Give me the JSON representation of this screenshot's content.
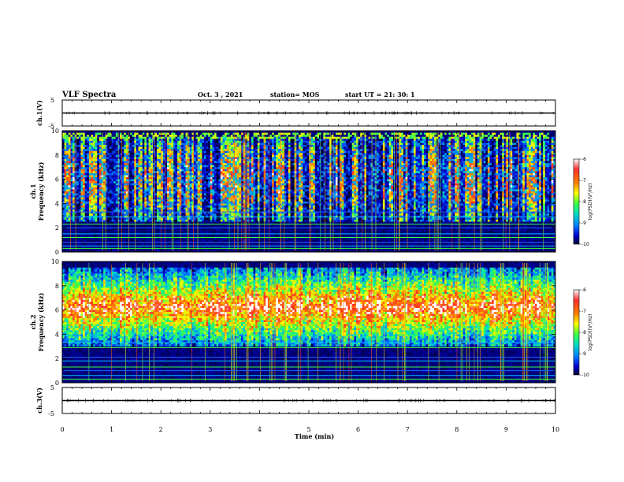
{
  "header": {
    "title": "VLF Spectra",
    "date": "Oct. 3  , 2021",
    "station": "station= MOS",
    "start_ut": "start  UT =  21: 30: 1"
  },
  "chart_data": [
    {
      "type": "line",
      "panel": "ch1-waveform",
      "ylabel": "ch.1(V)",
      "ylim": [
        -5,
        5
      ],
      "yticks": [
        "5",
        "-5"
      ],
      "x": [
        0,
        10
      ],
      "y": [
        0,
        0
      ],
      "xlim": [
        0,
        10
      ]
    },
    {
      "type": "heatmap",
      "panel": "ch1-spectrogram",
      "ylabel": "ch.1\nFrequency (kHz)",
      "ylabel_line1": "ch.1",
      "ylabel_line2": "Frequency (kHz)",
      "xlim": [
        0,
        10
      ],
      "ylim": [
        0,
        10
      ],
      "yticks": [
        "0",
        "2",
        "4",
        "6",
        "8",
        "10"
      ],
      "colorbar": {
        "label": "log(PSD)(V²/Hz)",
        "ticks": [
          "-6",
          "-7",
          "-8",
          "-9",
          "-10"
        ],
        "range": [
          -10,
          -6
        ],
        "colors": [
          "#ffffff",
          "#ff0000",
          "#ff8000",
          "#ffff00",
          "#80ff00",
          "#00ff80",
          "#00c0ff",
          "#0000ff",
          "#000040"
        ]
      },
      "tone_lines_khz": [
        0.3,
        0.5,
        0.8,
        1.2,
        1.5,
        2.0,
        2.3,
        2.9,
        3.3
      ],
      "emission_band_khz": [
        2.5,
        9.5
      ]
    },
    {
      "type": "heatmap",
      "panel": "ch2-spectrogram",
      "ylabel": "ch.2\nFrequency (kHz)",
      "ylabel_line1": "ch.2",
      "ylabel_line2": "Frequency (kHz)",
      "xlim": [
        0,
        10
      ],
      "ylim": [
        0,
        10
      ],
      "yticks": [
        "0",
        "2",
        "4",
        "6",
        "8",
        "10"
      ],
      "colorbar": {
        "label": "log(PSD)(V²/Hz)",
        "ticks": [
          "-6",
          "-7",
          "-8",
          "-9",
          "-10"
        ],
        "range": [
          -10,
          -6
        ],
        "colors": [
          "#ffffff",
          "#ff0000",
          "#ff8000",
          "#ffff00",
          "#80ff00",
          "#00ff80",
          "#00c0ff",
          "#0000ff",
          "#000040"
        ]
      },
      "tone_lines_khz": [
        0.3,
        0.6,
        1.0,
        1.3,
        1.8,
        2.1,
        2.9,
        3.3
      ],
      "emission_band_khz": [
        3.0,
        9.5
      ],
      "peak_band_khz": [
        5.0,
        7.5
      ]
    },
    {
      "type": "line",
      "panel": "ch3-waveform",
      "ylabel": "ch.3(V)",
      "ylim": [
        -5,
        5
      ],
      "yticks": [
        "5",
        "-5"
      ],
      "x": [
        0,
        10
      ],
      "y": [
        0,
        0
      ],
      "xlim": [
        0,
        10
      ]
    }
  ],
  "xaxis": {
    "label": "Time  (min)",
    "ticks": [
      "0",
      "1",
      "2",
      "3",
      "4",
      "5",
      "6",
      "7",
      "8",
      "9",
      "10"
    ],
    "range": [
      0,
      10
    ]
  }
}
